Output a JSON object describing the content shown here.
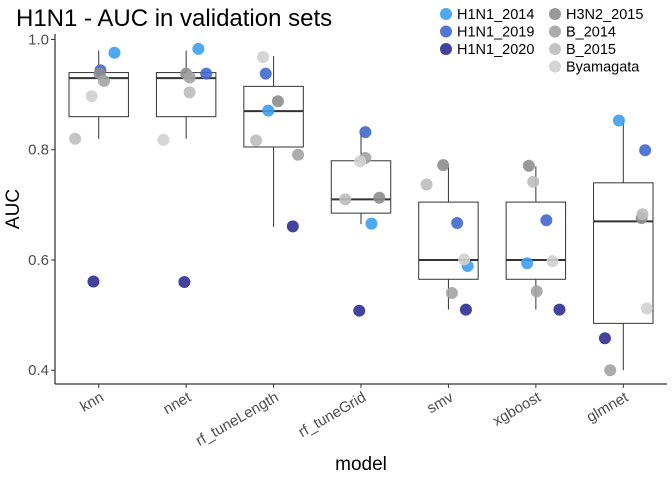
{
  "chart_data": {
    "type": "scatter",
    "title": "H1N1 - AUC in validation sets",
    "xlabel": "model",
    "ylabel": "AUC",
    "ylim": [
      0.375,
      1.01
    ],
    "yticks": [
      "0.4",
      "0.6",
      "0.8",
      "1.0"
    ],
    "categories": [
      "knn",
      "nnet",
      "rf_tuneLength",
      "rf_tuneGrid",
      "smv",
      "xgboost",
      "glmnet"
    ],
    "grid": false,
    "legend_position": "top-right",
    "boxplots": [
      {
        "category": "knn",
        "whisker_low": 0.82,
        "q1": 0.86,
        "median": 0.93,
        "q3": 0.94,
        "whisker_high": 0.98
      },
      {
        "category": "nnet",
        "whisker_low": 0.82,
        "q1": 0.86,
        "median": 0.93,
        "q3": 0.94,
        "whisker_high": 0.98
      },
      {
        "category": "rf_tuneLength",
        "whisker_low": 0.66,
        "q1": 0.805,
        "median": 0.87,
        "q3": 0.915,
        "whisker_high": 0.97
      },
      {
        "category": "rf_tuneGrid",
        "whisker_low": 0.665,
        "q1": 0.685,
        "median": 0.71,
        "q3": 0.78,
        "whisker_high": 0.83
      },
      {
        "category": "smv",
        "whisker_low": 0.51,
        "q1": 0.565,
        "median": 0.6,
        "q3": 0.705,
        "whisker_high": 0.77
      },
      {
        "category": "xgboost",
        "whisker_low": 0.51,
        "q1": 0.565,
        "median": 0.6,
        "q3": 0.705,
        "whisker_high": 0.77
      },
      {
        "category": "glmnet",
        "whisker_low": 0.4,
        "q1": 0.485,
        "median": 0.67,
        "q3": 0.74,
        "whisker_high": 0.855
      }
    ],
    "series": [
      {
        "name": "H1N1_2014",
        "color": "#3d9ff0",
        "points": [
          {
            "category": "knn",
            "jitter": 0.18,
            "y": 0.976
          },
          {
            "category": "nnet",
            "jitter": 0.14,
            "y": 0.983
          },
          {
            "category": "rf_tuneLength",
            "jitter": -0.06,
            "y": 0.871
          },
          {
            "category": "rf_tuneGrid",
            "jitter": 0.12,
            "y": 0.666
          },
          {
            "category": "smv",
            "jitter": 0.22,
            "y": 0.589
          },
          {
            "category": "xgboost",
            "jitter": -0.1,
            "y": 0.594
          },
          {
            "category": "glmnet",
            "jitter": -0.05,
            "y": 0.853
          }
        ]
      },
      {
        "name": "H1N1_2019",
        "color": "#4169cc",
        "points": [
          {
            "category": "knn",
            "jitter": 0.02,
            "y": 0.944
          },
          {
            "category": "nnet",
            "jitter": 0.23,
            "y": 0.938
          },
          {
            "category": "rf_tuneLength",
            "jitter": -0.09,
            "y": 0.938
          },
          {
            "category": "rf_tuneGrid",
            "jitter": 0.05,
            "y": 0.832
          },
          {
            "category": "smv",
            "jitter": 0.1,
            "y": 0.667
          },
          {
            "category": "xgboost",
            "jitter": 0.12,
            "y": 0.672
          },
          {
            "category": "glmnet",
            "jitter": 0.25,
            "y": 0.799
          }
        ]
      },
      {
        "name": "H1N1_2020",
        "color": "#2f2f94",
        "points": [
          {
            "category": "knn",
            "jitter": -0.06,
            "y": 0.561
          },
          {
            "category": "nnet",
            "jitter": -0.02,
            "y": 0.56
          },
          {
            "category": "rf_tuneLength",
            "jitter": 0.22,
            "y": 0.661
          },
          {
            "category": "rf_tuneGrid",
            "jitter": -0.02,
            "y": 0.508
          },
          {
            "category": "smv",
            "jitter": 0.2,
            "y": 0.51
          },
          {
            "category": "xgboost",
            "jitter": 0.27,
            "y": 0.51
          },
          {
            "category": "glmnet",
            "jitter": -0.21,
            "y": 0.458
          }
        ]
      },
      {
        "name": "H3N2_2015",
        "color": "#8e8e8e",
        "points": [
          {
            "category": "knn",
            "jitter": 0.01,
            "y": 0.938
          },
          {
            "category": "nnet",
            "jitter": 0.0,
            "y": 0.938
          },
          {
            "category": "rf_tuneLength",
            "jitter": 0.05,
            "y": 0.888
          },
          {
            "category": "rf_tuneGrid",
            "jitter": 0.21,
            "y": 0.713
          },
          {
            "category": "smv",
            "jitter": -0.06,
            "y": 0.772
          },
          {
            "category": "xgboost",
            "jitter": -0.08,
            "y": 0.771
          },
          {
            "category": "glmnet",
            "jitter": 0.21,
            "y": 0.676
          }
        ]
      },
      {
        "name": "B_2014",
        "color": "#a3a3a3",
        "points": [
          {
            "category": "knn",
            "jitter": 0.06,
            "y": 0.925
          },
          {
            "category": "nnet",
            "jitter": 0.04,
            "y": 0.931
          },
          {
            "category": "rf_tuneLength",
            "jitter": 0.28,
            "y": 0.791
          },
          {
            "category": "rf_tuneGrid",
            "jitter": 0.05,
            "y": 0.785
          },
          {
            "category": "smv",
            "jitter": 0.04,
            "y": 0.54
          },
          {
            "category": "xgboost",
            "jitter": 0.01,
            "y": 0.543
          },
          {
            "category": "glmnet",
            "jitter": -0.15,
            "y": 0.4
          }
        ]
      },
      {
        "name": "B_2015",
        "color": "#bdbdbd",
        "points": [
          {
            "category": "knn",
            "jitter": -0.27,
            "y": 0.82
          },
          {
            "category": "nnet",
            "jitter": 0.04,
            "y": 0.904
          },
          {
            "category": "rf_tuneLength",
            "jitter": -0.2,
            "y": 0.817
          },
          {
            "category": "rf_tuneGrid",
            "jitter": -0.18,
            "y": 0.71
          },
          {
            "category": "smv",
            "jitter": -0.25,
            "y": 0.737
          },
          {
            "category": "xgboost",
            "jitter": -0.03,
            "y": 0.742
          },
          {
            "category": "glmnet",
            "jitter": 0.22,
            "y": 0.683
          }
        ]
      },
      {
        "name": "Byamagata",
        "color": "#d0d0d0",
        "points": [
          {
            "category": "knn",
            "jitter": -0.08,
            "y": 0.897
          },
          {
            "category": "nnet",
            "jitter": -0.26,
            "y": 0.818
          },
          {
            "category": "rf_tuneLength",
            "jitter": -0.12,
            "y": 0.968
          },
          {
            "category": "rf_tuneGrid",
            "jitter": -0.01,
            "y": 0.779
          },
          {
            "category": "smv",
            "jitter": 0.18,
            "y": 0.601
          },
          {
            "category": "xgboost",
            "jitter": 0.19,
            "y": 0.598
          },
          {
            "category": "glmnet",
            "jitter": 0.27,
            "y": 0.512
          }
        ]
      }
    ]
  }
}
